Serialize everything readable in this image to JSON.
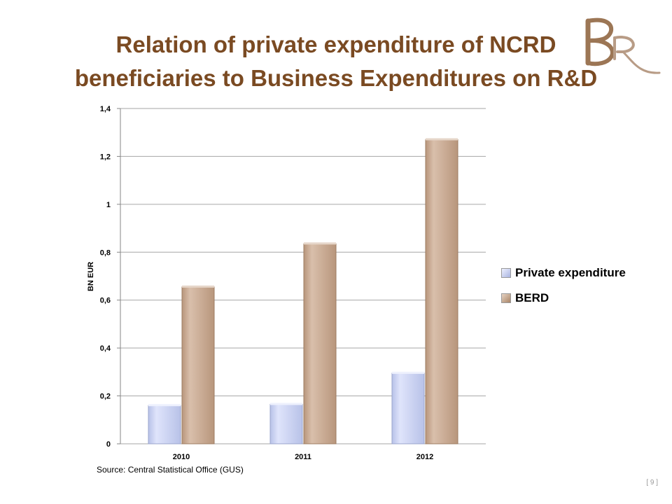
{
  "slide": {
    "title_line1": "Relation of private expenditure of NCRD",
    "title_line2": "beneficiaries to Business Expenditures on R&D",
    "source": "Source: Central Statistical Office (GUS)",
    "page_number": "[ 9 ]",
    "logo_icon": "br-monogram-logo",
    "logo_color": "#9c7655"
  },
  "chart_data": {
    "type": "bar",
    "title": "",
    "xlabel": "",
    "ylabel": "BN EUR",
    "categories": [
      "2010",
      "2011",
      "2012"
    ],
    "series": [
      {
        "name": "Private expenditure",
        "values": [
          0.16,
          0.165,
          0.295
        ],
        "color": "#c8d0ee"
      },
      {
        "name": "BERD",
        "values": [
          0.655,
          0.835,
          1.27
        ],
        "color": "#cbab94"
      }
    ],
    "ylim": [
      0,
      1.4
    ],
    "yticks": [
      "0",
      "0,2",
      "0,4",
      "0,6",
      "0,8",
      "1",
      "1,2",
      "1,4"
    ],
    "ytick_values": [
      0,
      0.2,
      0.4,
      0.6,
      0.8,
      1.0,
      1.2,
      1.4
    ],
    "grid": true,
    "legend": "right"
  }
}
